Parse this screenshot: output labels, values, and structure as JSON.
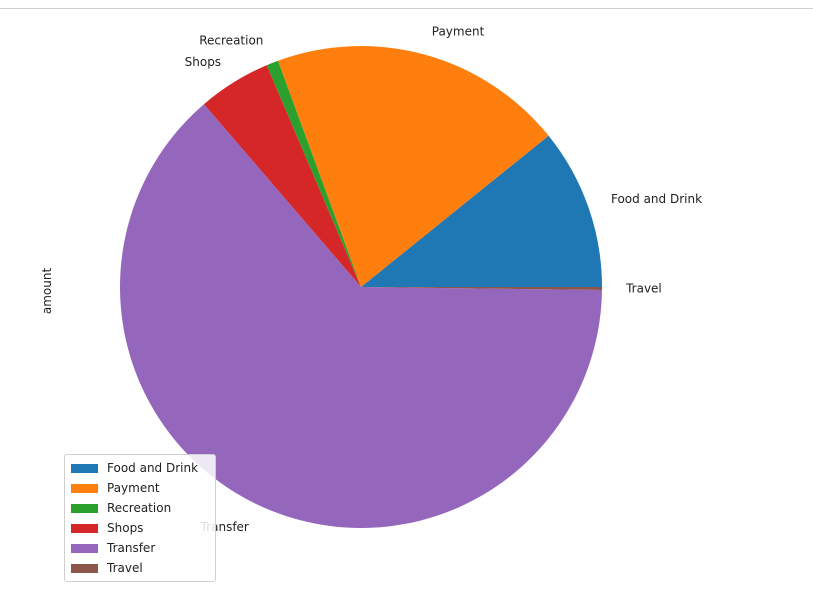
{
  "chart_data": {
    "type": "pie",
    "ylabel": "amount",
    "categories": [
      "Food and Drink",
      "Payment",
      "Recreation",
      "Shops",
      "Transfer",
      "Travel"
    ],
    "values": [
      10.8,
      19.8,
      0.8,
      4.9,
      63.5,
      0.2
    ],
    "colors": [
      "#1f77b4",
      "#ff7f0e",
      "#2ca02c",
      "#d62728",
      "#9467bd",
      "#8c564b"
    ],
    "legend": {
      "placement": "lower-left",
      "entries": [
        "Food and Drink",
        "Payment",
        "Recreation",
        "Shops",
        "Transfer",
        "Travel"
      ]
    },
    "start_angle": 0,
    "direction": "counterclockwise"
  }
}
